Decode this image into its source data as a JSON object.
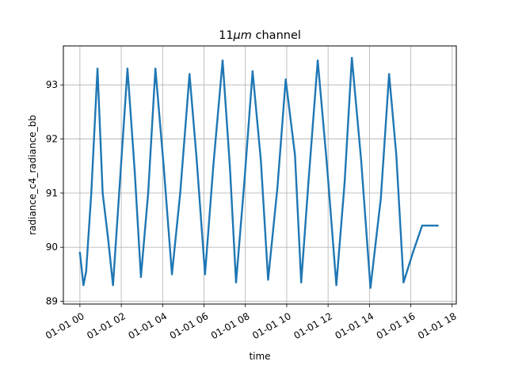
{
  "chart_data": {
    "type": "line",
    "title": "11μm channel",
    "title_prefix": "11",
    "title_math": "μm",
    "title_suffix": " channel",
    "xlabel": "time",
    "ylabel": "radiance_c4_radiance_bb",
    "xlim_hours": [
      -0.8,
      18.2
    ],
    "ylim": [
      88.95,
      93.72
    ],
    "x_ticks": [
      {
        "hour": 0,
        "label": "01-01 00"
      },
      {
        "hour": 2,
        "label": "01-01 02"
      },
      {
        "hour": 4,
        "label": "01-01 04"
      },
      {
        "hour": 6,
        "label": "01-01 06"
      },
      {
        "hour": 8,
        "label": "01-01 08"
      },
      {
        "hour": 10,
        "label": "01-01 10"
      },
      {
        "hour": 12,
        "label": "01-01 12"
      },
      {
        "hour": 14,
        "label": "01-01 14"
      },
      {
        "hour": 16,
        "label": "01-01 16"
      },
      {
        "hour": 18,
        "label": "01-01 18"
      }
    ],
    "y_ticks": [
      {
        "value": 89,
        "label": "89"
      },
      {
        "value": 90,
        "label": "90"
      },
      {
        "value": 91,
        "label": "91"
      },
      {
        "value": 92,
        "label": "92"
      },
      {
        "value": 93,
        "label": "93"
      }
    ],
    "grid": true,
    "line_color": "#1f77b4",
    "series": [
      {
        "x_hours": [
          0.0,
          0.17,
          0.3,
          0.55,
          0.85,
          1.1,
          1.35,
          1.6,
          1.95,
          2.3,
          2.65,
          2.95,
          3.3,
          3.65,
          4.05,
          4.45,
          4.85,
          5.3,
          5.65,
          6.05,
          6.45,
          6.9,
          7.25,
          7.55,
          7.95,
          8.35,
          8.75,
          9.1,
          9.55,
          9.95,
          10.4,
          10.7,
          11.05,
          11.5,
          11.95,
          12.4,
          12.8,
          13.15,
          13.6,
          14.05,
          14.55,
          14.95,
          15.3,
          15.65,
          16.1,
          16.55,
          16.95,
          17.3
        ],
        "values": [
          89.9,
          89.3,
          89.55,
          91.0,
          93.3,
          91.0,
          90.2,
          89.3,
          91.3,
          93.3,
          91.4,
          89.45,
          91.0,
          93.3,
          91.5,
          89.5,
          91.0,
          93.2,
          91.6,
          89.5,
          91.5,
          93.45,
          91.5,
          89.35,
          91.2,
          93.25,
          91.6,
          89.4,
          91.1,
          93.1,
          91.7,
          89.35,
          91.2,
          93.45,
          91.5,
          89.3,
          91.2,
          93.5,
          91.6,
          89.25,
          90.9,
          93.2,
          91.7,
          89.35,
          89.9,
          90.4,
          90.4,
          90.4
        ]
      }
    ]
  }
}
